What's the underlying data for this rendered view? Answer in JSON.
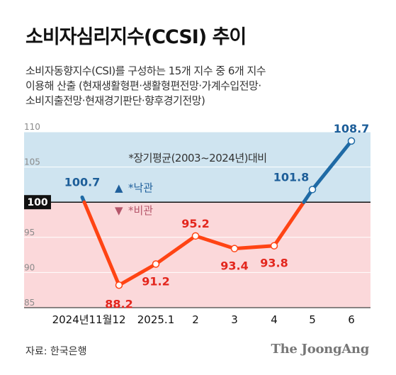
{
  "title": "소비자심리지수(CCSI) 추이",
  "subtitle_lines": [
    "소비자동향지수(CSI)를 구성하는 15개 지수 중 6개 지수",
    "이용해 산출 (현재생활형편·생활형편전망·가계수입전망·",
    "소비지출전망·현재경기판단·향후경기전망)"
  ],
  "source": "자료: 한국은행",
  "logo": "The JoongAng",
  "chart_data": {
    "type": "line",
    "categories": [
      "2024년11월",
      "12",
      "2025.1",
      "2",
      "3",
      "4",
      "5",
      "6"
    ],
    "series": [
      {
        "values": [
          100.7,
          88.2,
          91.2,
          95.2,
          93.4,
          93.8,
          101.8,
          108.7
        ]
      }
    ],
    "value_labels": [
      "100.7",
      "88.2",
      "91.2",
      "95.2",
      "93.4",
      "93.8",
      "101.8",
      "108.7"
    ],
    "ylim": [
      85,
      110
    ],
    "yticks": [
      "110",
      "105",
      "100",
      "95",
      "90",
      "85"
    ],
    "baseline": 100,
    "baseline_label": "100",
    "note": "*장기평균(2003~2024년)대비",
    "legend": [
      {
        "symbol": "▲",
        "label": "*낙관",
        "color": "#1f5f9b"
      },
      {
        "symbol": "▼",
        "label": "*비관",
        "color": "#b5566a"
      }
    ],
    "colors": {
      "optimistic_bg": "#cfe4f0",
      "pessimistic_bg": "#fbd8da",
      "optimistic_line": "#1f6aa5",
      "pessimistic_line": "#ff4414",
      "optimistic_text": "#1d5e99",
      "pessimistic_text": "#e3261d"
    }
  }
}
